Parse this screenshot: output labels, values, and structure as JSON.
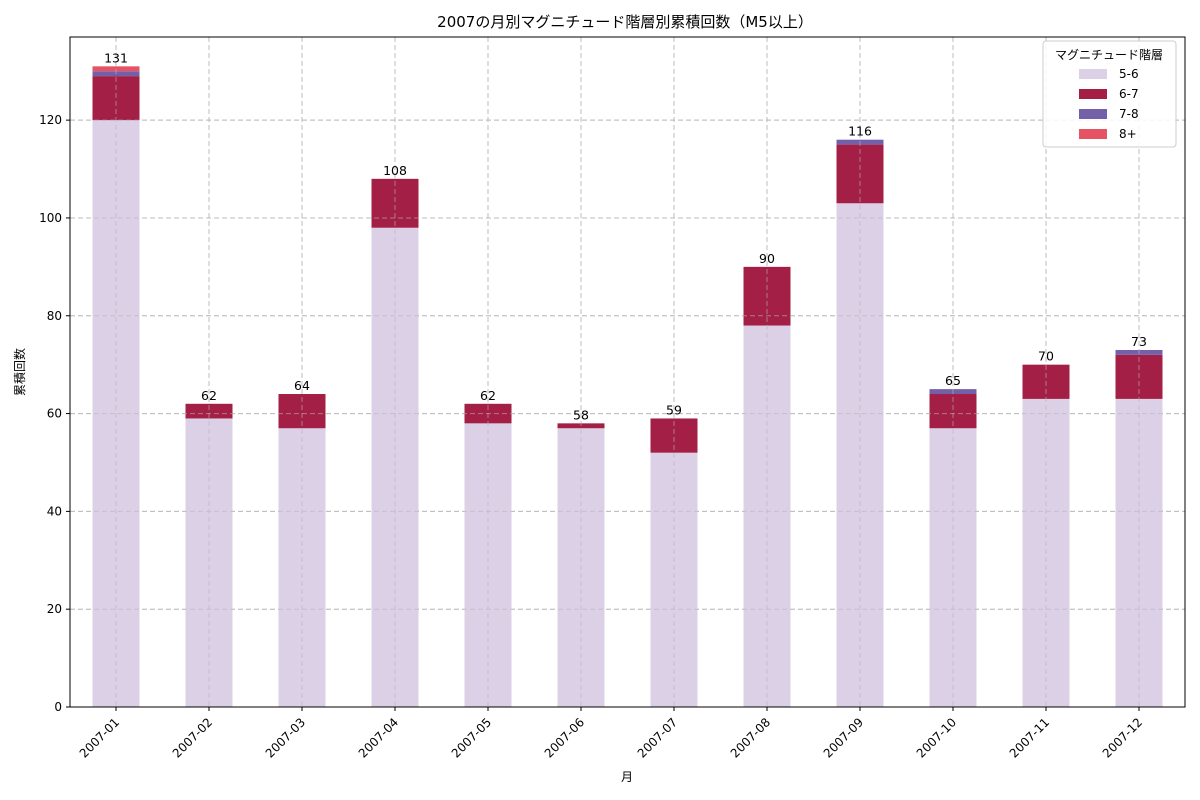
{
  "chart_data": {
    "type": "bar",
    "stacked": true,
    "title": "2007の月別マグニチュード階層別累積回数（M5以上）",
    "xlabel": "月",
    "ylabel": "累積回数",
    "ylim": [
      0,
      137
    ],
    "yticks": [
      0,
      20,
      40,
      60,
      80,
      100,
      120
    ],
    "grid": true,
    "legend_position": "upper right",
    "legend_title": "マグニチュード階層",
    "categories": [
      "2007-01",
      "2007-02",
      "2007-03",
      "2007-04",
      "2007-05",
      "2007-06",
      "2007-07",
      "2007-08",
      "2007-09",
      "2007-10",
      "2007-11",
      "2007-12"
    ],
    "series": [
      {
        "name": "5-6",
        "color": "#dbd0e6",
        "values": [
          120,
          59,
          57,
          98,
          58,
          57,
          52,
          78,
          103,
          57,
          63,
          63
        ]
      },
      {
        "name": "6-7",
        "color": "#a31f45",
        "values": [
          9,
          3,
          7,
          10,
          4,
          1,
          7,
          12,
          12,
          7,
          7,
          9
        ]
      },
      {
        "name": "7-8",
        "color": "#7460a8",
        "values": [
          1,
          0,
          0,
          0,
          0,
          0,
          0,
          0,
          1,
          1,
          0,
          1
        ]
      },
      {
        "name": "8+",
        "color": "#e65463",
        "values": [
          1,
          0,
          0,
          0,
          0,
          0,
          0,
          0,
          0,
          0,
          0,
          0
        ]
      }
    ],
    "totals": [
      131,
      62,
      64,
      108,
      62,
      58,
      59,
      90,
      116,
      65,
      70,
      73
    ]
  }
}
